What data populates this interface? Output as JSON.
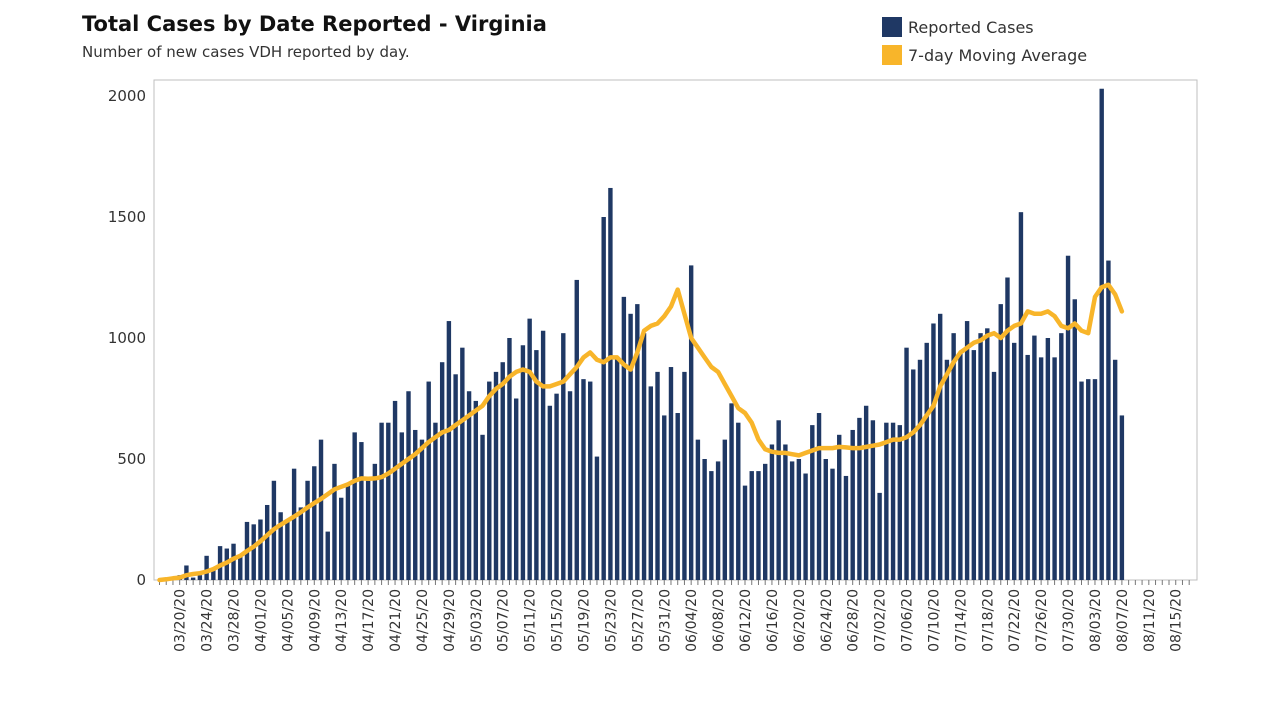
{
  "colors": {
    "bar": "#1f3864",
    "line": "#f8b52a",
    "axis": "#bfbfbf",
    "text": "#333333"
  },
  "chart_data": {
    "type": "bar",
    "title": "Total Cases by Date Reported - Virginia",
    "subtitle": "Number of new cases VDH reported by day.",
    "xlabel": "",
    "ylabel": "",
    "ylim": [
      0,
      2000
    ],
    "yticks": [
      0,
      500,
      1000,
      1500,
      2000
    ],
    "grid": false,
    "legend_position": "top-right",
    "start_date": "03/17/20",
    "tick_labels": [
      "03/20/20",
      "03/24/20",
      "03/28/20",
      "04/01/20",
      "04/05/20",
      "04/09/20",
      "04/13/20",
      "04/17/20",
      "04/21/20",
      "04/25/20",
      "04/29/20",
      "05/03/20",
      "05/07/20",
      "05/11/20",
      "05/15/20",
      "05/19/20",
      "05/23/20",
      "05/27/20",
      "05/31/20",
      "06/04/20",
      "06/08/20",
      "06/12/20",
      "06/16/20",
      "06/20/20",
      "06/24/20",
      "06/28/20",
      "07/02/20",
      "07/06/20",
      "07/10/20",
      "07/14/20",
      "07/18/20",
      "07/22/20",
      "07/26/20",
      "07/30/20",
      "08/03/20",
      "08/07/20",
      "08/11/20",
      "08/15/20"
    ],
    "series": [
      {
        "name": "Reported Cases",
        "type": "bar",
        "values": [
          0,
          0,
          10,
          20,
          60,
          10,
          20,
          100,
          40,
          140,
          130,
          150,
          100,
          240,
          230,
          250,
          310,
          410,
          280,
          240,
          460,
          300,
          410,
          470,
          580,
          200,
          480,
          340,
          400,
          610,
          570,
          410,
          480,
          650,
          650,
          740,
          610,
          780,
          620,
          580,
          820,
          650,
          900,
          1070,
          850,
          960,
          780,
          740,
          600,
          820,
          860,
          900,
          1000,
          750,
          970,
          1080,
          950,
          1030,
          720,
          770,
          1020,
          780,
          1240,
          830,
          820,
          510,
          1500,
          1620,
          920,
          1170,
          1100,
          1140,
          1020,
          800,
          860,
          680,
          880,
          690,
          860,
          1300,
          580,
          500,
          450,
          490,
          580,
          730,
          650,
          390,
          450,
          450,
          480,
          560,
          660,
          560,
          490,
          500,
          440,
          640,
          690,
          500,
          460,
          600,
          430,
          620,
          670,
          720,
          660,
          360,
          650,
          650,
          640,
          960,
          870,
          910,
          980,
          1060,
          1100,
          910,
          1020,
          940,
          1070,
          950,
          1020,
          1040,
          860,
          1140,
          1250,
          980,
          1520,
          930,
          1010,
          920,
          1000,
          920,
          1020,
          1340,
          1160,
          820,
          830,
          830,
          2030,
          1320,
          910,
          680
        ]
      },
      {
        "name": "7-day Moving Average",
        "type": "line",
        "values": [
          0,
          3,
          7,
          10,
          20,
          25,
          28,
          35,
          45,
          60,
          72,
          88,
          100,
          120,
          138,
          160,
          185,
          210,
          228,
          245,
          262,
          280,
          300,
          318,
          335,
          355,
          375,
          385,
          395,
          410,
          420,
          418,
          420,
          425,
          440,
          460,
          480,
          500,
          520,
          545,
          570,
          590,
          610,
          620,
          640,
          660,
          680,
          700,
          720,
          760,
          790,
          810,
          840,
          860,
          870,
          860,
          820,
          800,
          800,
          810,
          820,
          850,
          880,
          920,
          940,
          910,
          900,
          920,
          920,
          890,
          870,
          940,
          1030,
          1050,
          1060,
          1090,
          1130,
          1200,
          1100,
          1000,
          960,
          920,
          880,
          860,
          810,
          760,
          710,
          690,
          650,
          580,
          540,
          530,
          525,
          525,
          520,
          515,
          525,
          535,
          545,
          545,
          545,
          550,
          548,
          545,
          545,
          550,
          555,
          560,
          570,
          580,
          580,
          590,
          610,
          640,
          680,
          720,
          800,
          850,
          900,
          940,
          960,
          980,
          990,
          1010,
          1020,
          1000,
          1030,
          1050,
          1060,
          1110,
          1100,
          1100,
          1110,
          1090,
          1050,
          1040,
          1060,
          1030,
          1020,
          1170,
          1210,
          1220,
          1180,
          1110
        ]
      }
    ]
  }
}
